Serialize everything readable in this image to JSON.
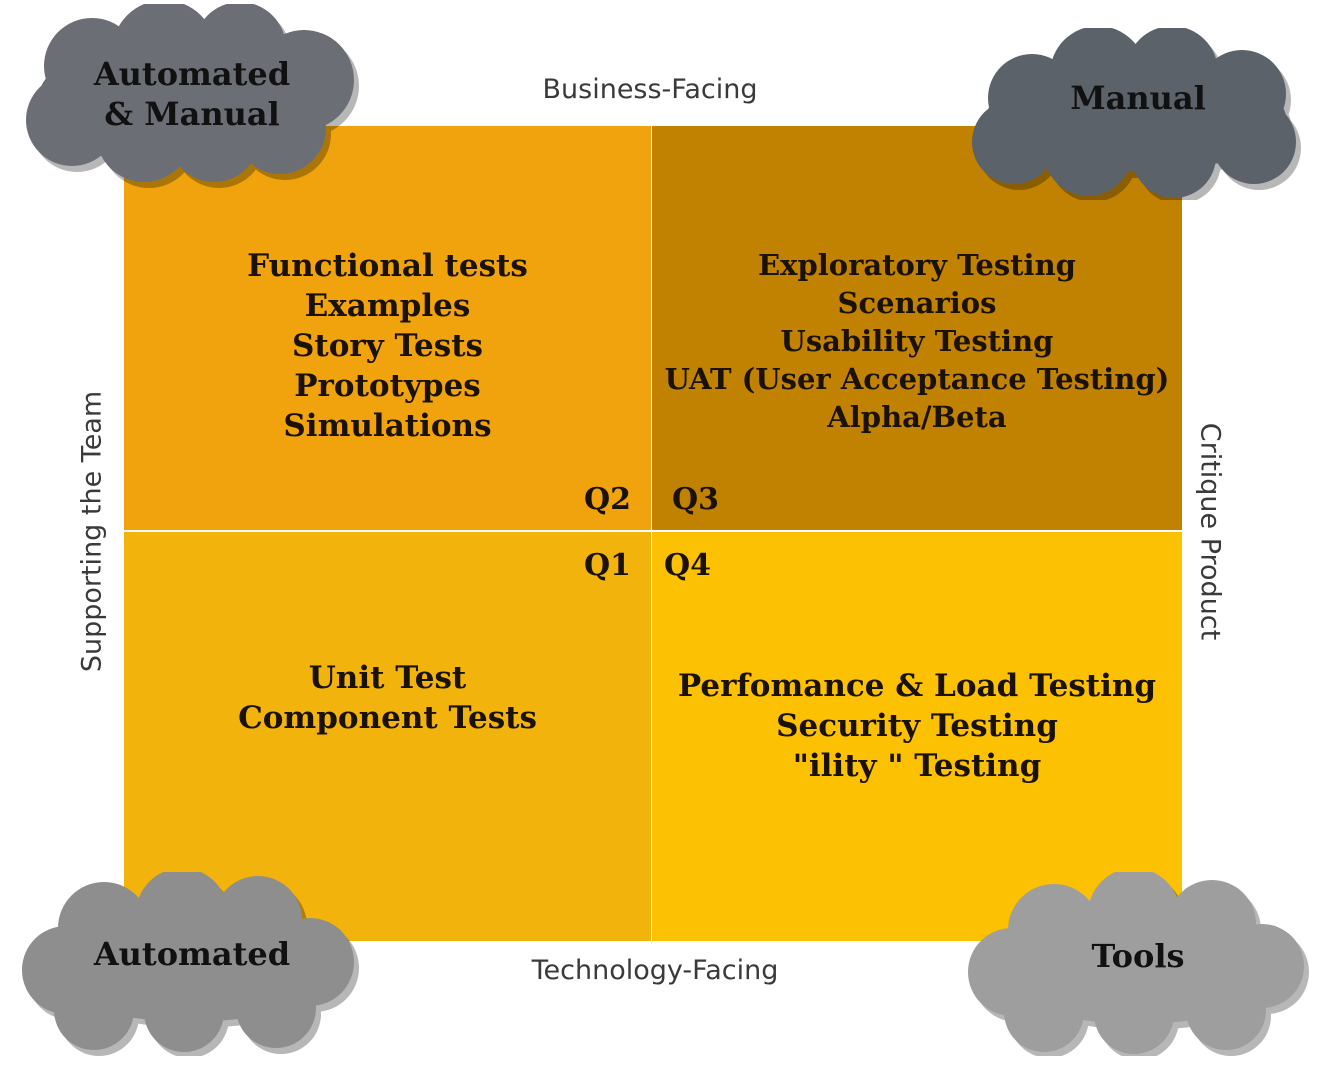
{
  "axes": {
    "top": "Business-Facing",
    "bottom": "Technology-Facing",
    "left": "Supporting the Team",
    "right": "Critique Product"
  },
  "quadrants": {
    "q2": {
      "label": "Q2",
      "color": "#f0a30c",
      "items": [
        "Functional tests",
        "Examples",
        "Story Tests",
        "Prototypes",
        "Simulations"
      ]
    },
    "q3": {
      "label": "Q3",
      "color": "#c18202",
      "items": [
        "Exploratory Testing",
        "Scenarios",
        "Usability Testing",
        "UAT (User Acceptance Testing)",
        "Alpha/Beta"
      ]
    },
    "q1": {
      "label": "Q1",
      "color": "#f1b30c",
      "items": [
        "Unit Test",
        "Component Tests"
      ]
    },
    "q4": {
      "label": "Q4",
      "color": "#fbc102",
      "items": [
        "Perfomance & Load Testing",
        "Security Testing",
        "\"ility \" Testing"
      ]
    }
  },
  "clouds": {
    "top_left": {
      "lines": [
        "Automated",
        "& Manual"
      ],
      "color": "#6b6f75"
    },
    "top_right": {
      "lines": [
        "Manual"
      ],
      "color": "#5c626a"
    },
    "bottom_left": {
      "lines": [
        "Automated"
      ],
      "color": "#8e8e8e"
    },
    "bottom_right": {
      "lines": [
        "Tools"
      ],
      "color": "#9e9e9e"
    }
  }
}
